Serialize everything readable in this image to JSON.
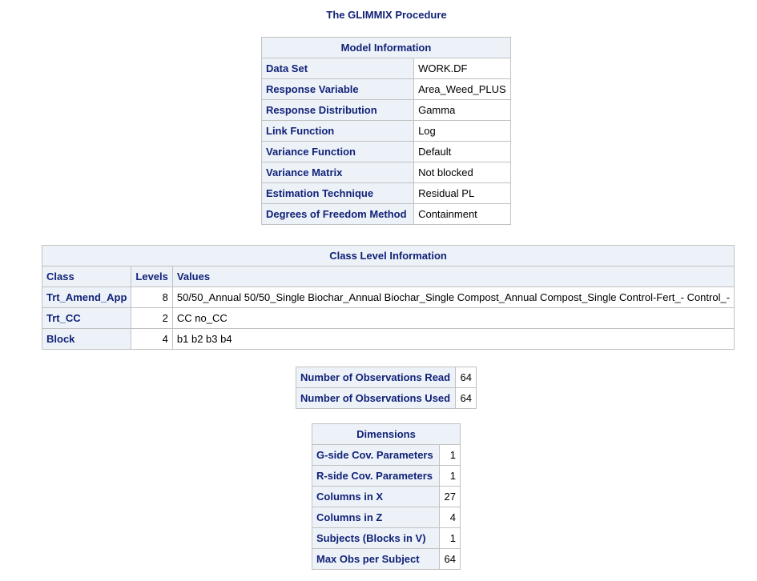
{
  "procedure_title": "The GLIMMIX Procedure",
  "model_info": {
    "caption": "Model Information",
    "rows": [
      {
        "label": "Data Set",
        "value": "WORK.DF"
      },
      {
        "label": "Response Variable",
        "value": "Area_Weed_PLUS"
      },
      {
        "label": "Response Distribution",
        "value": "Gamma"
      },
      {
        "label": "Link Function",
        "value": "Log"
      },
      {
        "label": "Variance Function",
        "value": "Default"
      },
      {
        "label": "Variance Matrix",
        "value": "Not blocked"
      },
      {
        "label": "Estimation Technique",
        "value": "Residual PL"
      },
      {
        "label": "Degrees of Freedom Method",
        "value": "Containment"
      }
    ]
  },
  "class_info": {
    "caption": "Class Level Information",
    "headers": {
      "class": "Class",
      "levels": "Levels",
      "values": "Values"
    },
    "rows": [
      {
        "class": "Trt_Amend_App",
        "levels": "8",
        "values": "50/50_Annual 50/50_Single Biochar_Annual Biochar_Single Compost_Annual Compost_Single Control-Fert_- Control_-"
      },
      {
        "class": "Trt_CC",
        "levels": "2",
        "values": "CC no_CC"
      },
      {
        "class": "Block",
        "levels": "4",
        "values": "b1 b2 b3 b4"
      }
    ]
  },
  "observations": {
    "rows": [
      {
        "label": "Number of Observations Read",
        "value": "64"
      },
      {
        "label": "Number of Observations Used",
        "value": "64"
      }
    ]
  },
  "dimensions": {
    "caption": "Dimensions",
    "rows": [
      {
        "label": "G-side Cov. Parameters",
        "value": "1"
      },
      {
        "label": "R-side Cov. Parameters",
        "value": "1"
      },
      {
        "label": "Columns in X",
        "value": "27"
      },
      {
        "label": "Columns in Z",
        "value": "4"
      },
      {
        "label": "Subjects (Blocks in V)",
        "value": "1"
      },
      {
        "label": "Max Obs per Subject",
        "value": "64"
      }
    ]
  }
}
